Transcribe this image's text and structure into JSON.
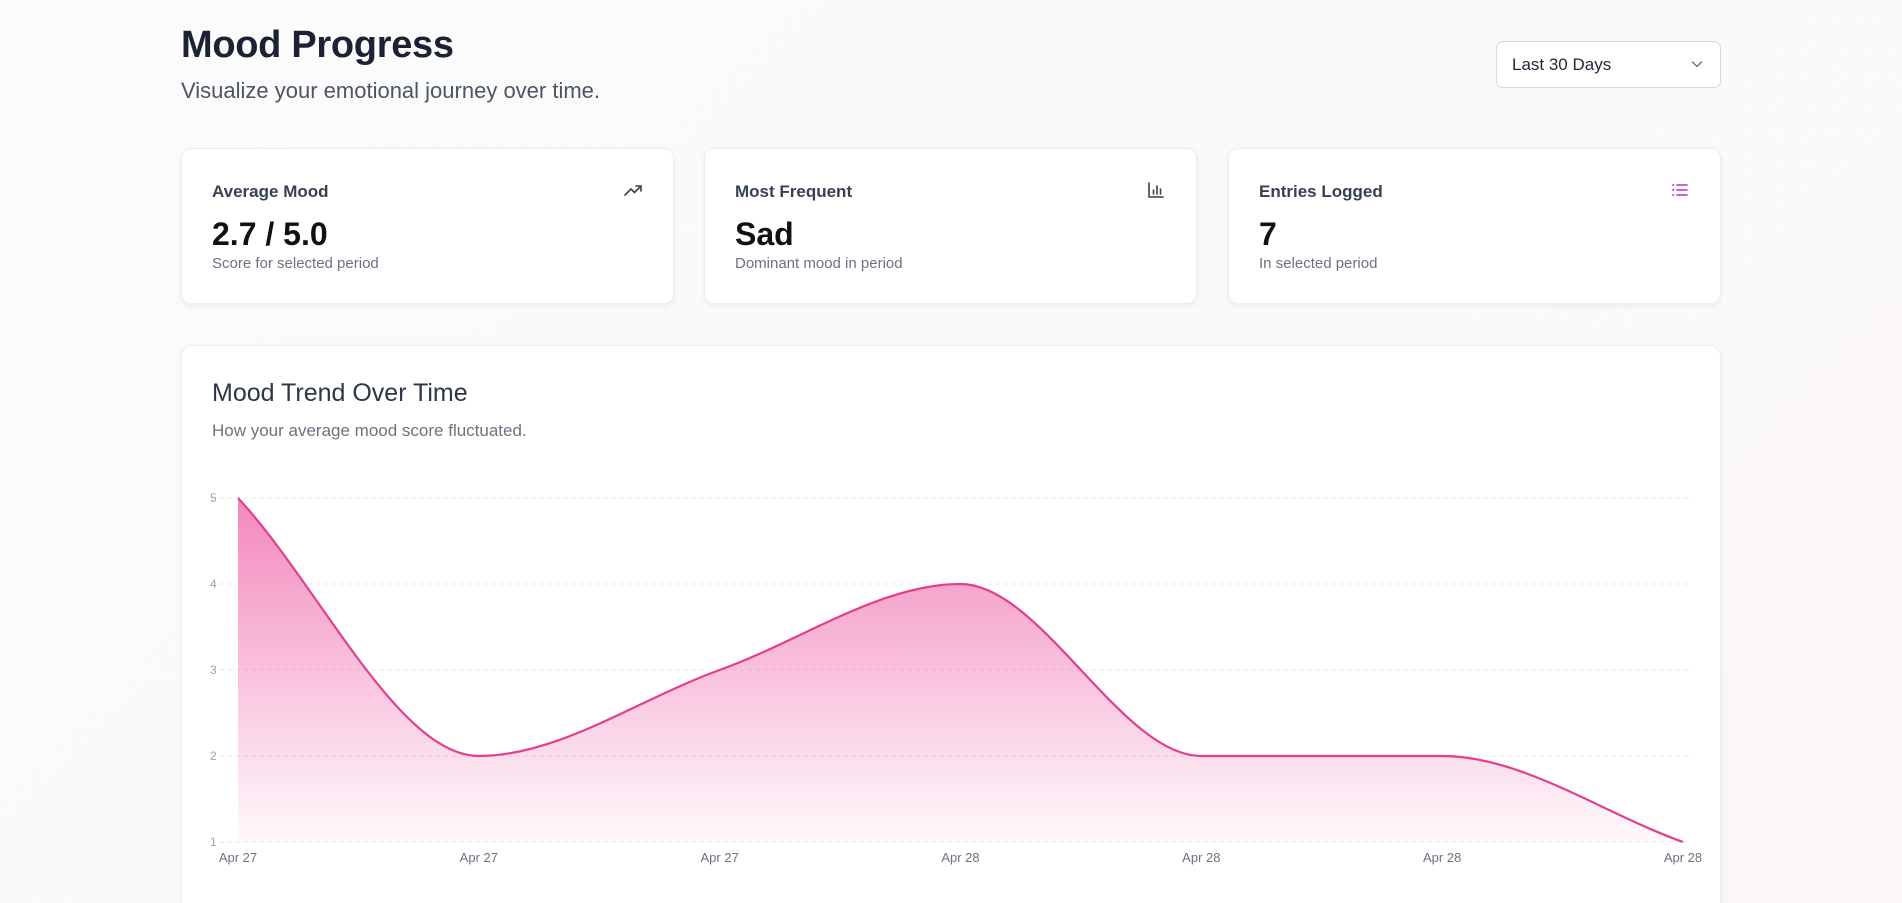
{
  "header": {
    "title": "Mood Progress",
    "subtitle": "Visualize your emotional journey over time.",
    "range_select": {
      "value": "Last 30 Days"
    }
  },
  "stats": [
    {
      "label": "Average Mood",
      "value": "2.7 / 5.0",
      "note": "Score for selected period",
      "icon": "trending-up-icon",
      "icon_color": "#374151"
    },
    {
      "label": "Most Frequent",
      "value": "Sad",
      "note": "Dominant mood in period",
      "icon": "bar-chart-icon",
      "icon_color": "#374151"
    },
    {
      "label": "Entries Logged",
      "value": "7",
      "note": "In selected period",
      "icon": "list-icon",
      "icon_color": "#c026d3"
    }
  ],
  "chart": {
    "title": "Mood Trend Over Time",
    "subtitle": "How your average mood score fluctuated."
  },
  "chart_data": {
    "type": "area",
    "x": [
      "Apr 27",
      "Apr 27",
      "Apr 27",
      "Apr 28",
      "Apr 28",
      "Apr 28",
      "Apr 28"
    ],
    "series": [
      {
        "values": [
          5,
          2,
          3,
          4,
          2,
          2,
          1
        ]
      }
    ],
    "ylim": [
      1,
      5
    ],
    "yticks": [
      1,
      2,
      3,
      4,
      5
    ],
    "grid": true,
    "legend": "none",
    "line_color": "#e0408f",
    "fill_color": "#ec4899"
  }
}
